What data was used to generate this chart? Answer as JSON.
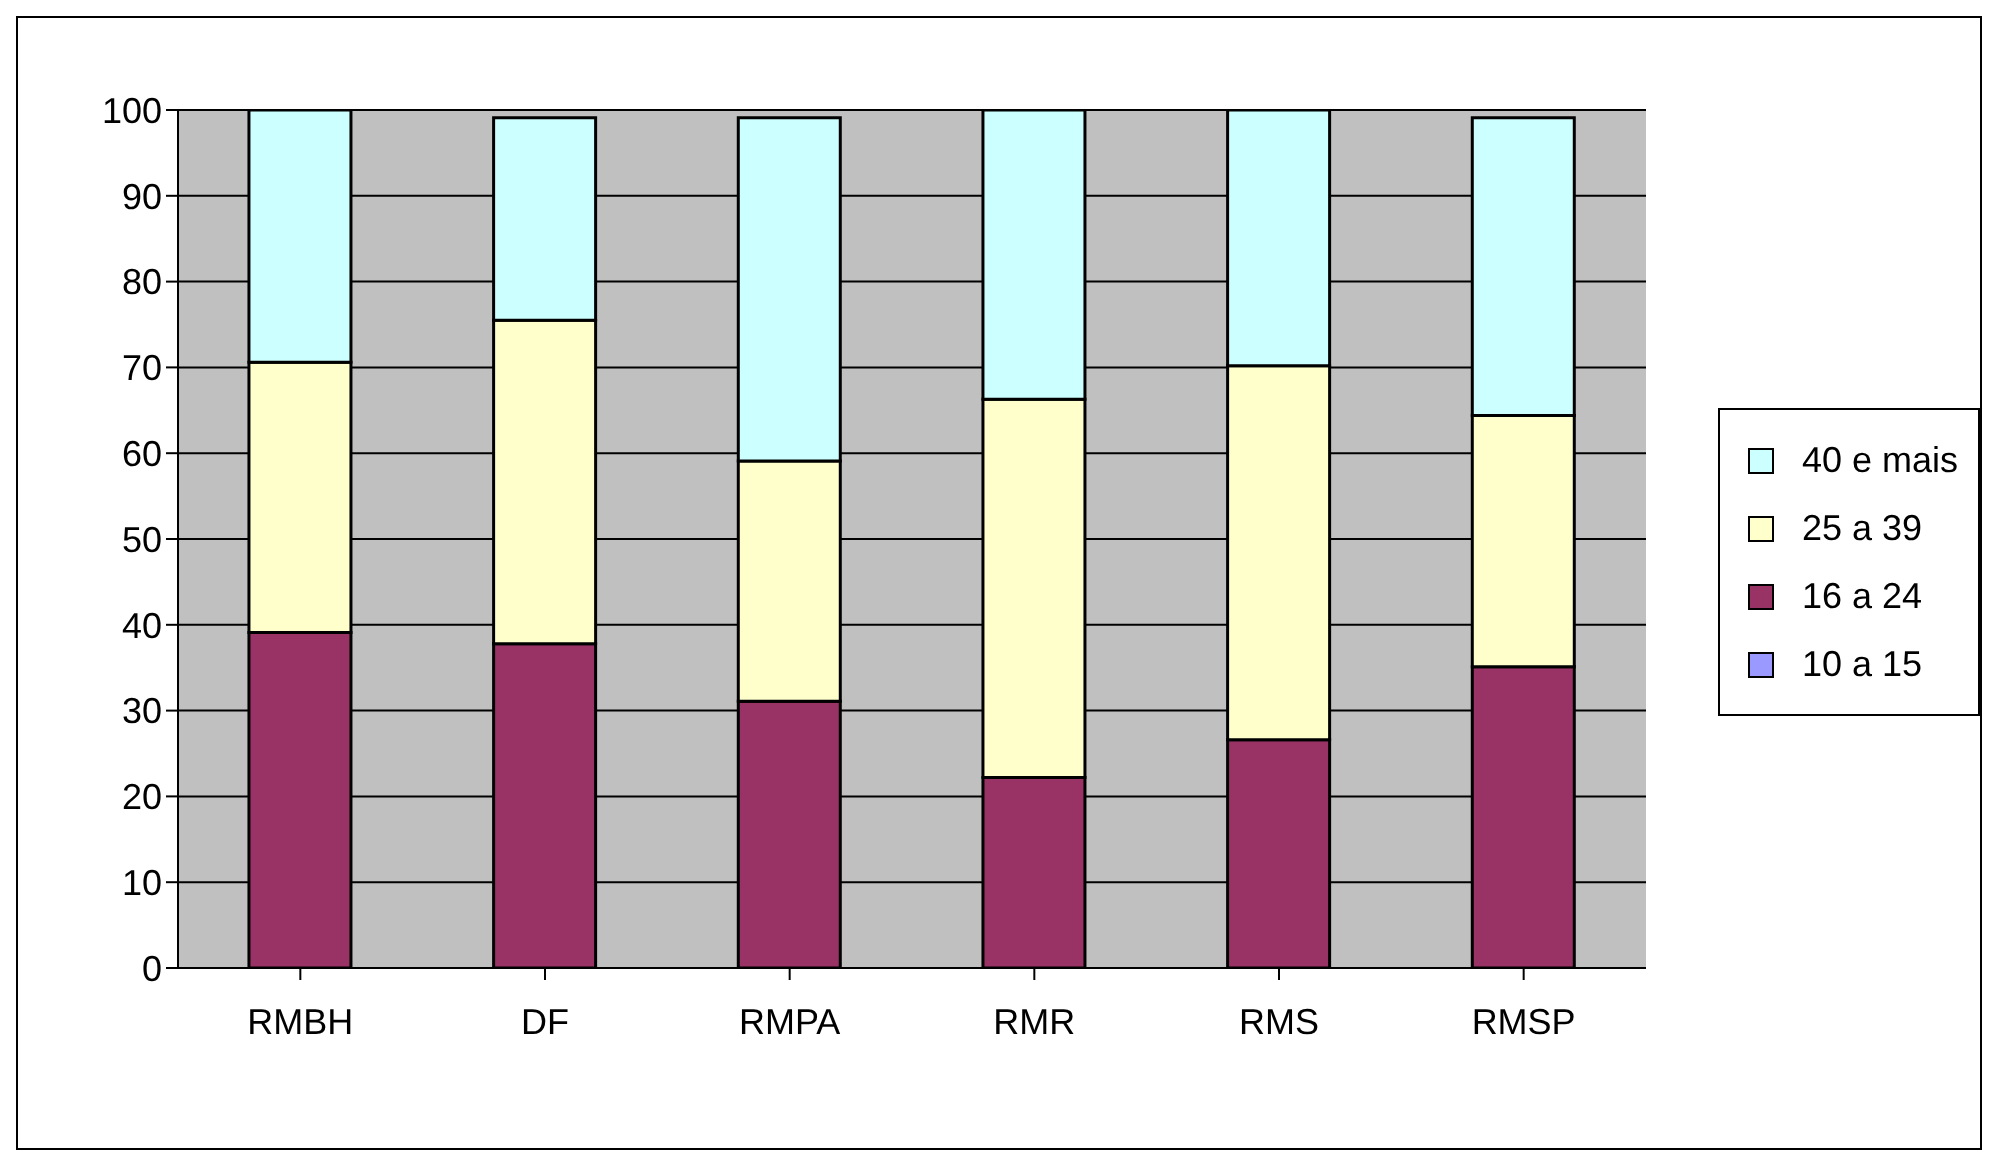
{
  "chart_data": {
    "type": "bar",
    "stacked": true,
    "categories": [
      "RMBH",
      "DF",
      "RMPA",
      "RMR",
      "RMS",
      "RMSP"
    ],
    "series": [
      {
        "name": "10 a 15",
        "color": "#9999ff",
        "values": [
          0,
          0,
          0,
          0,
          0,
          0
        ]
      },
      {
        "name": "16 a 24",
        "color": "#993366",
        "values": [
          39.1,
          37.8,
          31.1,
          22.2,
          26.6,
          35.1
        ]
      },
      {
        "name": "25 a 39",
        "color": "#ffffcc",
        "values": [
          31.5,
          37.7,
          28.0,
          44.1,
          43.6,
          29.3
        ]
      },
      {
        "name": "40 e mais",
        "color": "#ccffff",
        "values": [
          29.4,
          23.6,
          40.0,
          33.7,
          29.8,
          34.7
        ]
      }
    ],
    "ylim": [
      0,
      100
    ],
    "yticks": [
      0,
      10,
      20,
      30,
      40,
      50,
      60,
      70,
      80,
      90,
      100
    ],
    "grid": "y",
    "legend": "right"
  }
}
